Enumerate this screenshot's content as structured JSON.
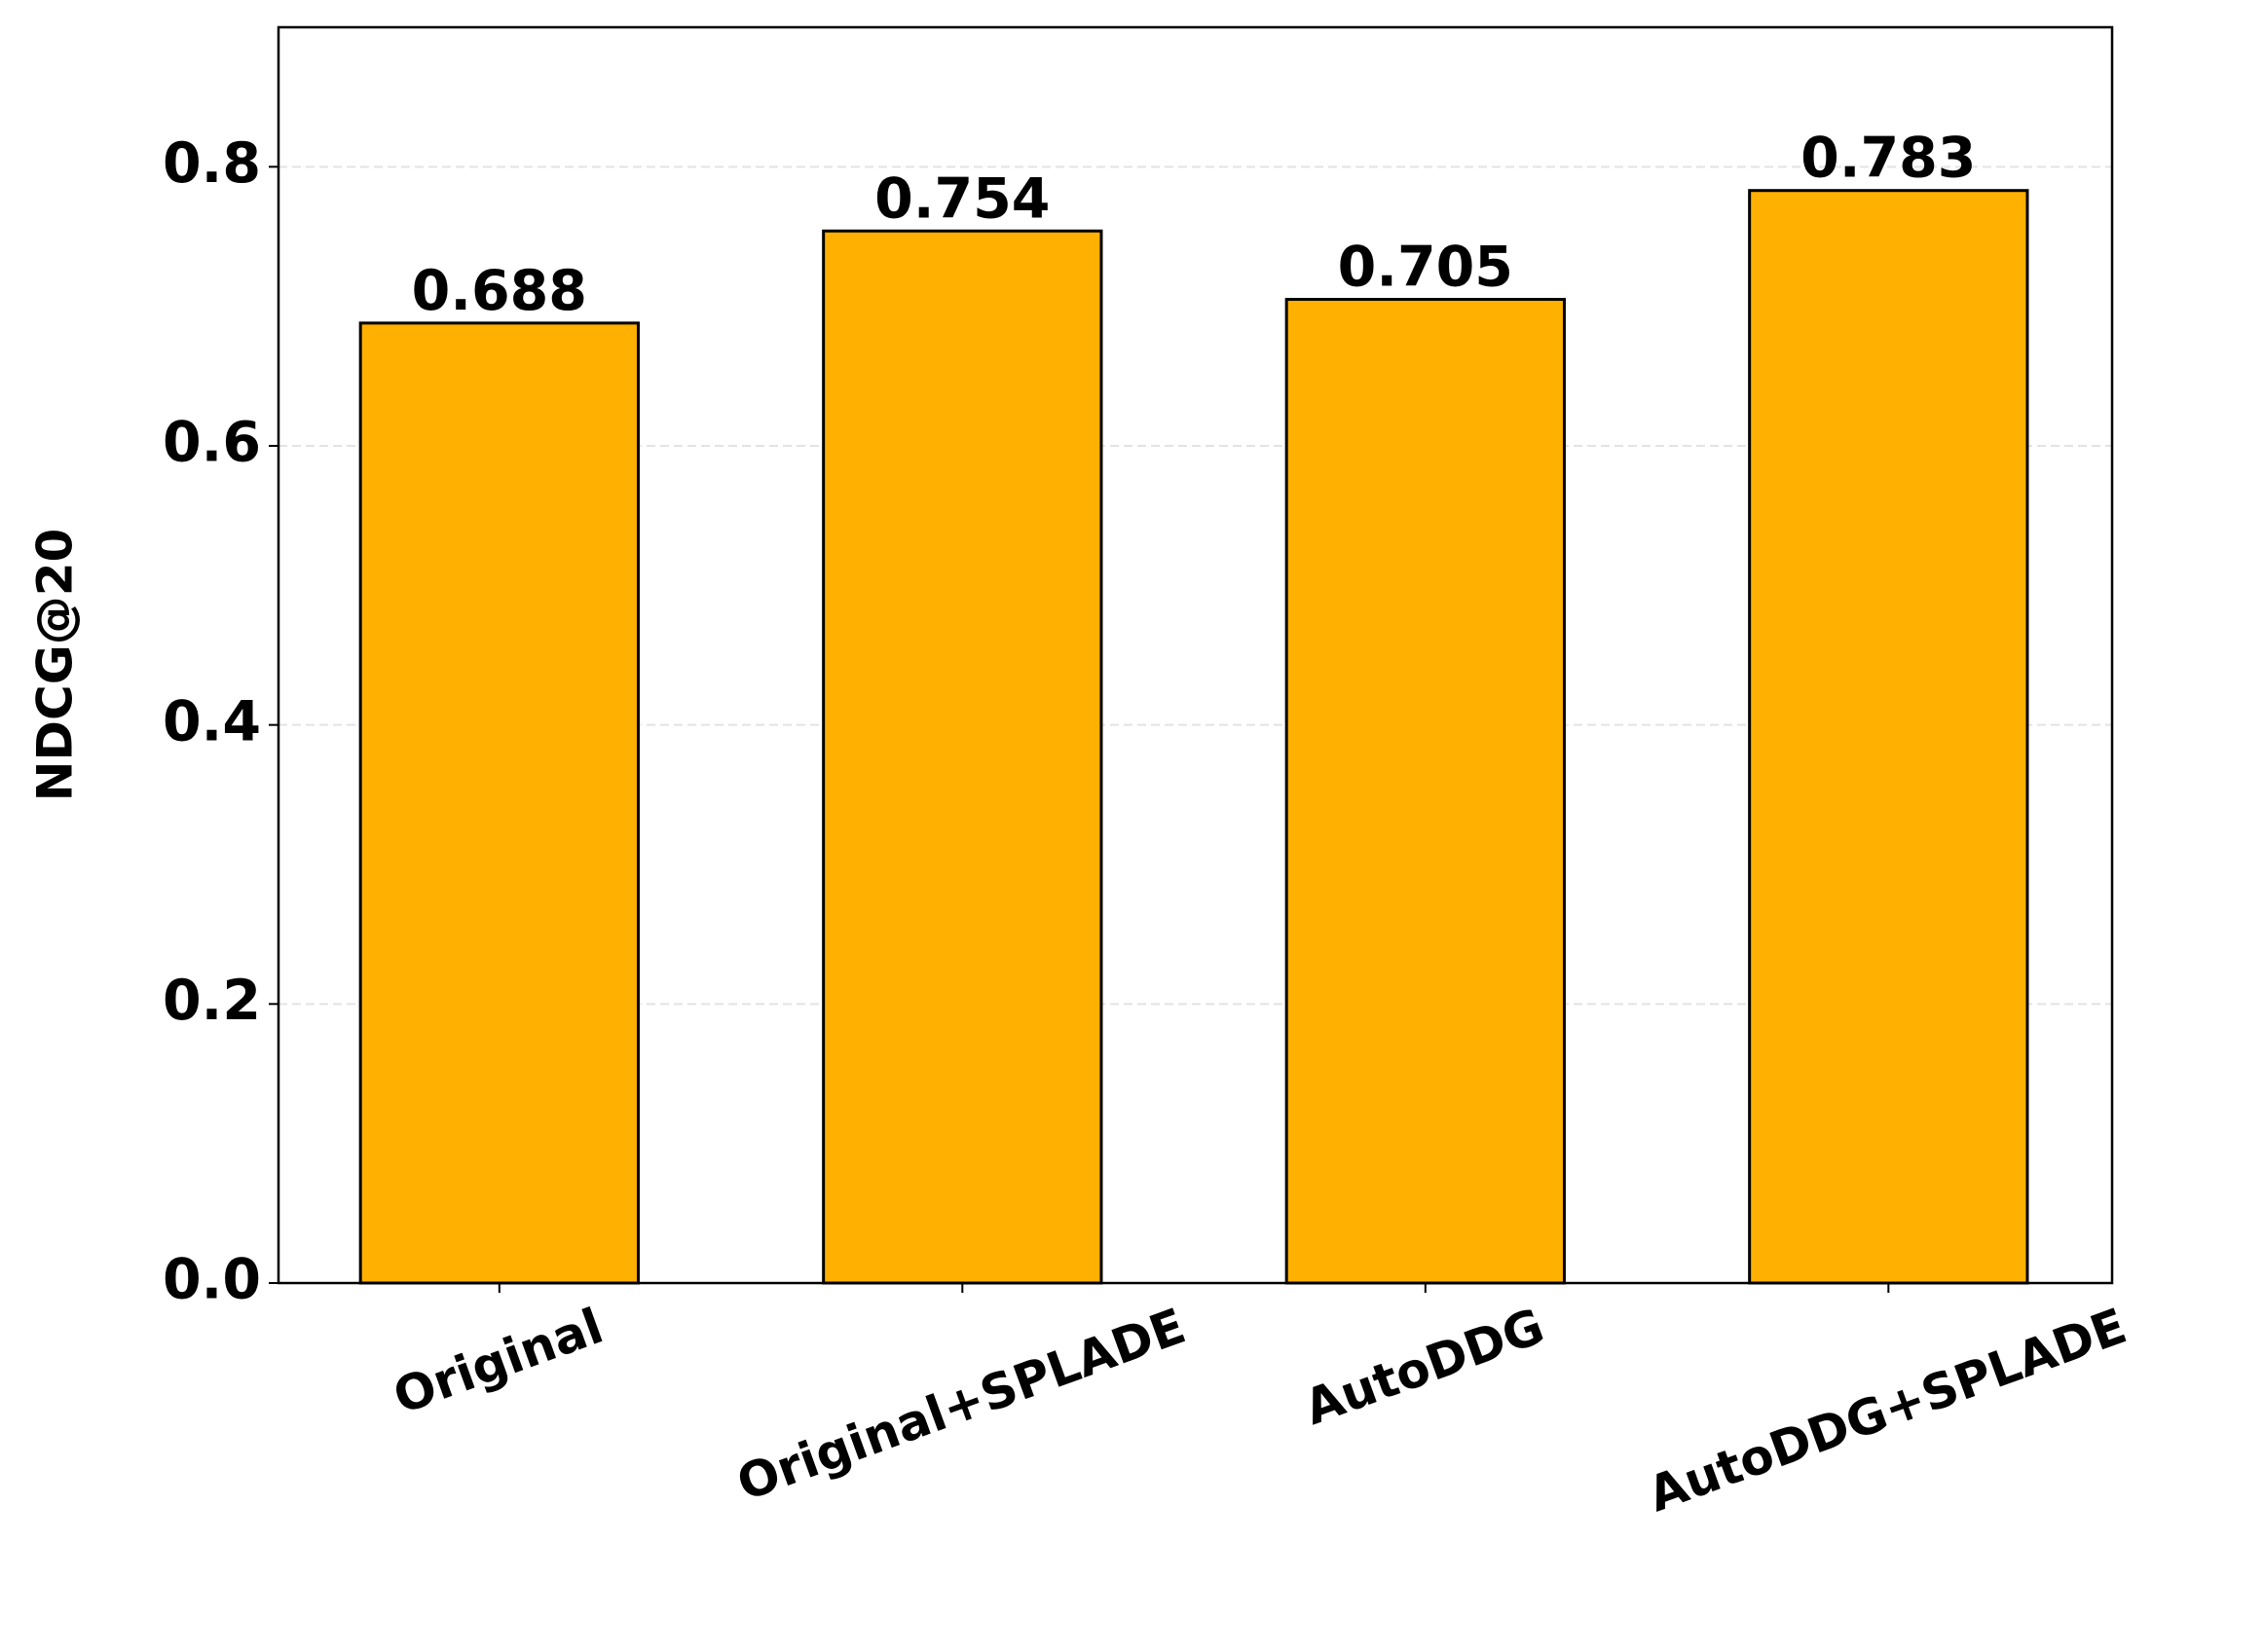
{
  "chart_data": {
    "type": "bar",
    "ylabel": "NDCG@20",
    "categories": [
      "Original",
      "Original+SPLADE",
      "AutoDDG",
      "AutoDDG+SPLADE"
    ],
    "values": [
      0.688,
      0.754,
      0.705,
      0.783
    ],
    "color": "#ffb000",
    "ylim": [
      0,
      0.9
    ],
    "yticks": [
      {
        "value": 0,
        "label": "0.0"
      },
      0.2,
      0.4,
      0.6,
      0.8
    ],
    "grid": true
  }
}
